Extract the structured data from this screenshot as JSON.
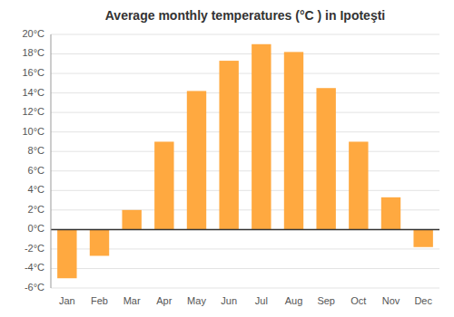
{
  "chart_data": {
    "type": "bar",
    "title": "Average monthly temperatures (°C ) in Ipoteşti",
    "categories": [
      "Jan",
      "Feb",
      "Mar",
      "Apr",
      "May",
      "Jun",
      "Jul",
      "Aug",
      "Sep",
      "Oct",
      "Nov",
      "Dec"
    ],
    "values": [
      -5.0,
      -2.7,
      2.0,
      9.0,
      14.2,
      17.3,
      19.0,
      18.2,
      14.5,
      9.0,
      3.3,
      -1.8
    ],
    "color": "#FFA940",
    "ylim": [
      -6,
      20
    ],
    "yticks": [
      {
        "value": -6,
        "label": "-6°C"
      },
      {
        "value": -4,
        "label": "-4°C"
      },
      {
        "value": -2,
        "label": "-2°C"
      },
      {
        "value": 0,
        "label": "0°C"
      },
      {
        "value": 2,
        "label": "2°C"
      },
      {
        "value": 4,
        "label": "4°C"
      },
      {
        "value": 6,
        "label": "6°C"
      },
      {
        "value": 8,
        "label": "8°C"
      },
      {
        "value": 10,
        "label": "10°C"
      },
      {
        "value": 12,
        "label": "12°C"
      },
      {
        "value": 14,
        "label": "14°C"
      },
      {
        "value": 16,
        "label": "16°C"
      },
      {
        "value": 18,
        "label": "18°C"
      },
      {
        "value": 20,
        "label": "20°C"
      }
    ],
    "grid": true
  }
}
